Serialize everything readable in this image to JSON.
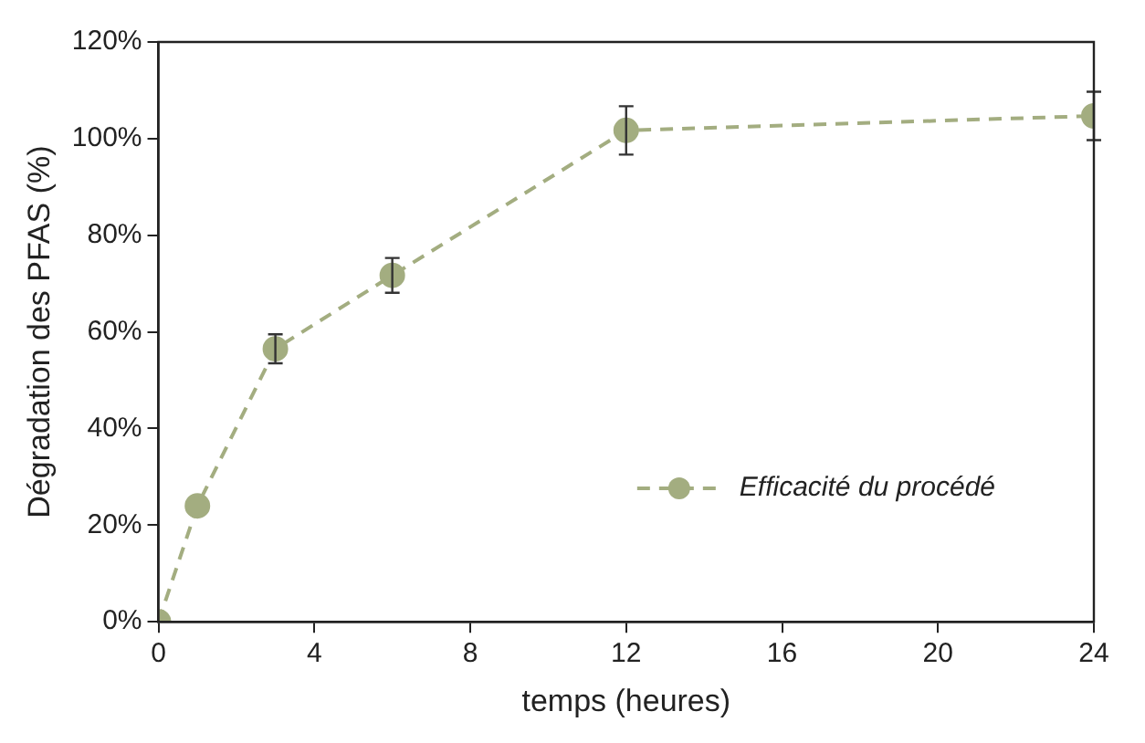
{
  "chart_data": {
    "type": "line",
    "xlabel": "temps (heures)",
    "ylabel": "Dégradation des PFAS (%)",
    "x": [
      0,
      1,
      3,
      6,
      12,
      24
    ],
    "series": [
      {
        "name": "Efficacité du procédé",
        "color": "#a3ad80",
        "values": [
          0,
          24,
          56.5,
          71.7,
          101.7,
          104.7
        ],
        "errors": [
          null,
          null,
          3,
          3.6,
          5,
          5
        ]
      }
    ],
    "xlim": [
      0,
      24
    ],
    "xticks": [
      0,
      4,
      8,
      12,
      16,
      20,
      24
    ],
    "ylim": [
      0,
      120
    ],
    "yticks": [
      {
        "value": 0,
        "label": "0%"
      },
      {
        "value": 20,
        "label": "20%"
      },
      {
        "value": 40,
        "label": "40%"
      },
      {
        "value": 60,
        "label": "60%"
      },
      {
        "value": 80,
        "label": "80%"
      },
      {
        "value": 100,
        "label": "100%"
      },
      {
        "value": 120,
        "label": "120%"
      }
    ],
    "grid": false,
    "legend": "right",
    "marker": "circle",
    "line_style": "dashed"
  }
}
